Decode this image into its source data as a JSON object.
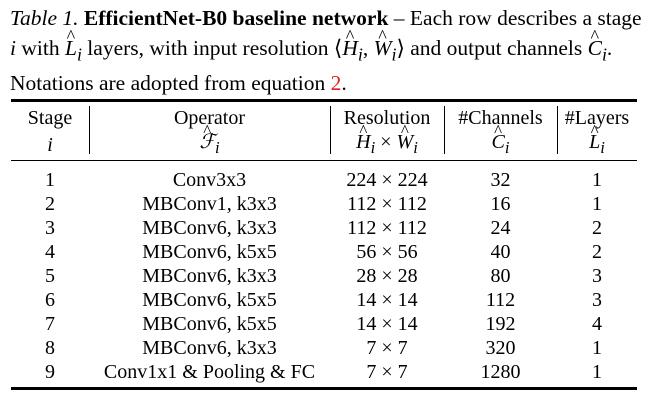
{
  "caption": {
    "label": "Table 1.",
    "title": "EfficientNet-B0 baseline network",
    "text_1": " – Each row describes a stage ",
    "var_i": "i",
    "text_2": " with ",
    "var_L": "L",
    "sub_i_1": "i",
    "text_3": " layers, with input resolution ⟨",
    "var_H": "H",
    "sub_i_2": "i",
    "comma": ", ",
    "var_W": "W",
    "sub_i_3": "i",
    "text_4": "⟩ and output channels ",
    "var_C": "C",
    "sub_i_4": "i",
    "text_5": ". Notations are adopted from equation ",
    "eq_ref": "2",
    "text_6": "."
  },
  "header": {
    "stage": "Stage",
    "stage_sym": "i",
    "operator": "Operator",
    "operator_sym": "ℱ",
    "operator_sub": "i",
    "resolution": "Resolution",
    "res_H": "H",
    "res_sub_1": "i",
    "res_times": " × ",
    "res_W": "W",
    "res_sub_2": "i",
    "channels": "#Channels",
    "ch_C": "C",
    "ch_sub": "i",
    "layers": "#Layers",
    "ly_L": "L",
    "ly_sub": "i"
  },
  "rows": [
    {
      "stage": "1",
      "operator": "Conv3x3",
      "resolution": "224 × 224",
      "channels": "32",
      "layers": "1"
    },
    {
      "stage": "2",
      "operator": "MBConv1, k3x3",
      "resolution": "112 × 112",
      "channels": "16",
      "layers": "1"
    },
    {
      "stage": "3",
      "operator": "MBConv6, k3x3",
      "resolution": "112 × 112",
      "channels": "24",
      "layers": "2"
    },
    {
      "stage": "4",
      "operator": "MBConv6, k5x5",
      "resolution": "56 × 56",
      "channels": "40",
      "layers": "2"
    },
    {
      "stage": "5",
      "operator": "MBConv6, k3x3",
      "resolution": "28 × 28",
      "channels": "80",
      "layers": "3"
    },
    {
      "stage": "6",
      "operator": "MBConv6, k5x5",
      "resolution": "14 × 14",
      "channels": "112",
      "layers": "3"
    },
    {
      "stage": "7",
      "operator": "MBConv6, k5x5",
      "resolution": "14 × 14",
      "channels": "192",
      "layers": "4"
    },
    {
      "stage": "8",
      "operator": "MBConv6, k3x3",
      "resolution": "7 × 7",
      "channels": "320",
      "layers": "1"
    },
    {
      "stage": "9",
      "operator": "Conv1x1 & Pooling & FC",
      "resolution": "7 × 7",
      "channels": "1280",
      "layers": "1"
    }
  ]
}
